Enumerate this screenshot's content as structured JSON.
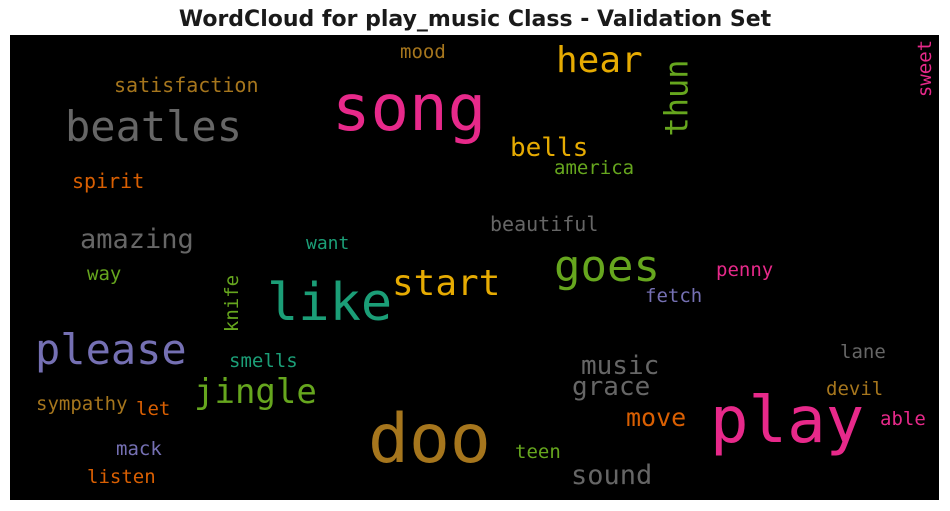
{
  "title": "WordCloud for play_music Class - Validation Set",
  "colors": {
    "pink": "#e7298a",
    "gold": "#e6ab02",
    "ochre": "#a6761d",
    "teal": "#1b9e77",
    "green": "#66a61e",
    "gray": "#666666",
    "purple": "#7570b3",
    "orange": "#d95f02"
  },
  "words": [
    {
      "text": "song",
      "color": "#e7298a"
    },
    {
      "text": "play",
      "color": "#e7298a"
    },
    {
      "text": "doo",
      "color": "#a6761d"
    },
    {
      "text": "like",
      "color": "#1b9e77"
    },
    {
      "text": "beatles",
      "color": "#666666"
    },
    {
      "text": "please",
      "color": "#7570b3"
    },
    {
      "text": "goes",
      "color": "#66a61e"
    },
    {
      "text": "hear",
      "color": "#e6ab02"
    },
    {
      "text": "start",
      "color": "#e6ab02"
    },
    {
      "text": "jingle",
      "color": "#66a61e"
    },
    {
      "text": "thun",
      "color": "#66a61e"
    },
    {
      "text": "amazing",
      "color": "#666666"
    },
    {
      "text": "music",
      "color": "#666666"
    },
    {
      "text": "grace",
      "color": "#666666"
    },
    {
      "text": "sound",
      "color": "#666666"
    },
    {
      "text": "bells",
      "color": "#e6ab02"
    },
    {
      "text": "move",
      "color": "#d95f02"
    },
    {
      "text": "satisfaction",
      "color": "#a6761d"
    },
    {
      "text": "beautiful",
      "color": "#666666"
    },
    {
      "text": "spirit",
      "color": "#d95f02"
    },
    {
      "text": "america",
      "color": "#66a61e"
    },
    {
      "text": "mood",
      "color": "#a6761d"
    },
    {
      "text": "sweet",
      "color": "#e7298a"
    },
    {
      "text": "want",
      "color": "#1b9e77"
    },
    {
      "text": "way",
      "color": "#66a61e"
    },
    {
      "text": "knife",
      "color": "#66a61e"
    },
    {
      "text": "penny",
      "color": "#e7298a"
    },
    {
      "text": "fetch",
      "color": "#7570b3"
    },
    {
      "text": "smells",
      "color": "#1b9e77"
    },
    {
      "text": "lane",
      "color": "#666666"
    },
    {
      "text": "devil",
      "color": "#a6761d"
    },
    {
      "text": "sympathy",
      "color": "#a6761d"
    },
    {
      "text": "let",
      "color": "#d95f02"
    },
    {
      "text": "able",
      "color": "#e7298a"
    },
    {
      "text": "mack",
      "color": "#7570b3"
    },
    {
      "text": "teen",
      "color": "#66a61e"
    },
    {
      "text": "listen",
      "color": "#d95f02"
    }
  ]
}
